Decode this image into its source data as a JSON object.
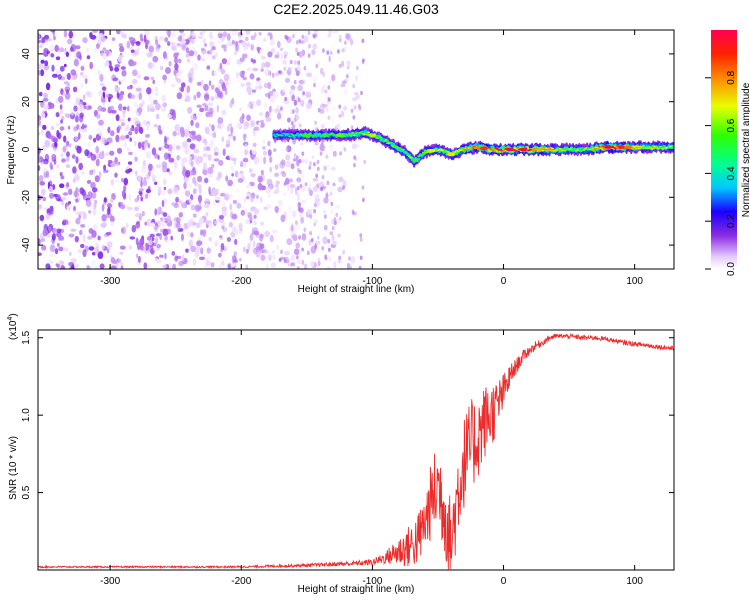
{
  "figure_title": "C2E2.2025.049.11.46.G03",
  "chart_data": [
    {
      "type": "heatmap",
      "title": "",
      "xlabel": "Height of straight line (km)",
      "ylabel": "Frequency (Hz)",
      "xlim": [
        -355,
        130
      ],
      "ylim": [
        -50,
        50
      ],
      "xticks": [
        -300,
        -200,
        -100,
        0,
        100
      ],
      "yticks": [
        -40,
        -20,
        0,
        20,
        40
      ],
      "colorbar": {
        "label": "Normalized spectral amplitude",
        "range": [
          0.0,
          1.0
        ],
        "ticks": [
          0.0,
          0.2,
          0.4,
          0.6,
          0.8
        ],
        "colormap": "rainbow (white→purple→blue→cyan→green→yellow→red)"
      },
      "ridge": {
        "description": "frequency ridge of the signal vs height",
        "points": [
          [
            -175,
            6
          ],
          [
            -160,
            6
          ],
          [
            -140,
            6
          ],
          [
            -120,
            6
          ],
          [
            -105,
            7
          ],
          [
            -95,
            5
          ],
          [
            -85,
            2
          ],
          [
            -75,
            -1
          ],
          [
            -68,
            -5
          ],
          [
            -60,
            -1
          ],
          [
            -50,
            0
          ],
          [
            -40,
            -2
          ],
          [
            -30,
            0
          ],
          [
            -20,
            1
          ],
          [
            -10,
            0
          ],
          [
            0,
            0
          ],
          [
            20,
            0
          ],
          [
            40,
            0
          ],
          [
            60,
            0
          ],
          [
            80,
            1
          ],
          [
            100,
            1
          ],
          [
            130,
            1
          ]
        ],
        "amplitude": [
          [
            -175,
            0.35
          ],
          [
            -150,
            0.45
          ],
          [
            -120,
            0.5
          ],
          [
            -100,
            0.55
          ],
          [
            -80,
            0.5
          ],
          [
            -60,
            0.55
          ],
          [
            -40,
            0.6
          ],
          [
            -20,
            0.75
          ],
          [
            0,
            0.9
          ],
          [
            20,
            0.85
          ],
          [
            40,
            0.6
          ],
          [
            60,
            0.5
          ],
          [
            80,
            0.95
          ],
          [
            100,
            0.65
          ],
          [
            130,
            0.55
          ]
        ]
      },
      "noise_region": {
        "description": "scattered low-amplitude noise across all frequencies",
        "x_range": [
          -355,
          -110
        ],
        "amplitude": 0.05
      }
    },
    {
      "type": "line",
      "title": "",
      "xlabel": "Height of straight line (km)",
      "ylabel": "SNR (10 * v/v)",
      "scale_label": "(x10^4)",
      "xlim": [
        -355,
        130
      ],
      "ylim": [
        0,
        1.55
      ],
      "xticks": [
        -300,
        -200,
        -100,
        0,
        100
      ],
      "yticks": [
        0.5,
        1.0,
        1.5
      ],
      "y_tick_labels": [
        "0.5",
        "1.0",
        "1.5"
      ],
      "color": "#ee2b2b",
      "series": [
        {
          "x": [
            -355,
            -300,
            -250,
            -200,
            -150,
            -120,
            -100,
            -90,
            -80,
            -70,
            -65,
            -60,
            -55,
            -50,
            -45,
            -40,
            -35,
            -30,
            -25,
            -20,
            -15,
            -10,
            -5,
            0,
            5,
            10,
            15,
            20,
            25,
            30,
            35,
            40,
            50,
            60,
            70,
            80,
            90,
            100,
            110,
            120,
            130
          ],
          "y": [
            0.02,
            0.02,
            0.02,
            0.02,
            0.03,
            0.04,
            0.05,
            0.08,
            0.12,
            0.16,
            0.2,
            0.3,
            0.45,
            0.55,
            0.4,
            0.15,
            0.5,
            0.7,
            0.8,
            0.85,
            0.95,
            1.0,
            1.05,
            1.15,
            1.25,
            1.32,
            1.38,
            1.42,
            1.45,
            1.47,
            1.5,
            1.51,
            1.51,
            1.5,
            1.5,
            1.49,
            1.47,
            1.46,
            1.45,
            1.44,
            1.43
          ],
          "noise": [
            0.005,
            0.005,
            0.005,
            0.006,
            0.01,
            0.015,
            0.02,
            0.04,
            0.1,
            0.15,
            0.18,
            0.2,
            0.25,
            0.3,
            0.3,
            0.3,
            0.3,
            0.3,
            0.3,
            0.28,
            0.25,
            0.22,
            0.18,
            0.12,
            0.08,
            0.05,
            0.04,
            0.03,
            0.03,
            0.02,
            0.02,
            0.015,
            0.015,
            0.015,
            0.015,
            0.015,
            0.015,
            0.015,
            0.015,
            0.015,
            0.015
          ]
        }
      ]
    }
  ]
}
